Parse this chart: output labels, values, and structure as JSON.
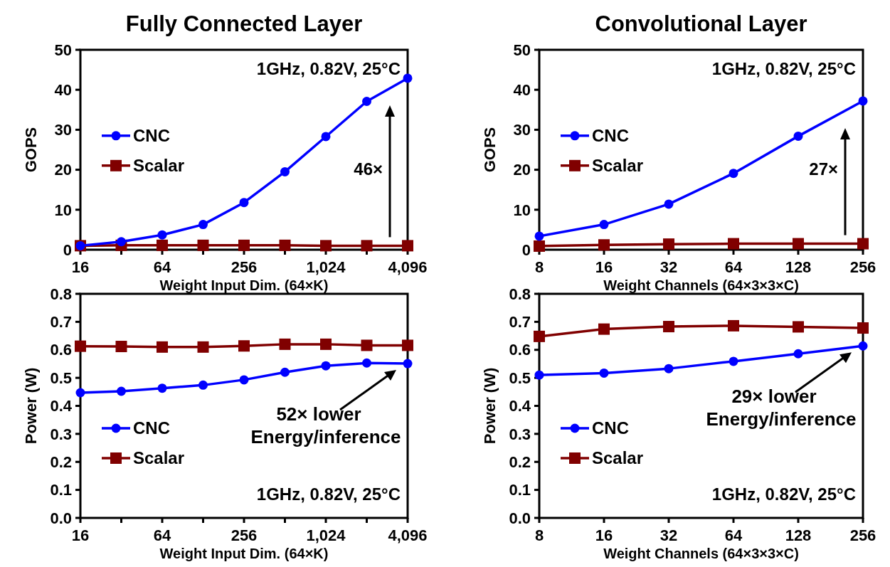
{
  "chart_data": [
    {
      "type": "line",
      "title": "Fully Connected Layer",
      "xlabel": "Weight Input Dim. (64×K)",
      "ylabel": "GOPS",
      "log": "x",
      "legend": "left",
      "grid": false,
      "x": [
        16,
        32,
        64,
        128,
        256,
        512,
        1024,
        2048,
        4096
      ],
      "xlim": [
        16,
        4096
      ],
      "xticks": [
        16,
        {
          "value": 32,
          "label": null
        },
        64,
        {
          "value": 128,
          "label": null
        },
        256,
        {
          "value": 512,
          "label": null
        },
        {
          "value": 1024,
          "label": "1,024"
        },
        {
          "value": 2048,
          "label": null
        },
        {
          "value": 4096,
          "label": "4,096"
        }
      ],
      "ylim": [
        0,
        50
      ],
      "yticks": [
        0,
        10,
        20,
        30,
        40,
        50
      ],
      "series": [
        {
          "name": "CNC",
          "color": "#0000ff",
          "marker": "circle",
          "values": [
            1.0,
            2.0,
            3.7,
            6.3,
            11.8,
            19.5,
            28.3,
            37.1,
            42.9
          ]
        },
        {
          "name": "Scalar",
          "color": "#800000",
          "marker": "square",
          "values": [
            1.0,
            1.1,
            1.1,
            1.1,
            1.1,
            1.1,
            1.0,
            1.0,
            1.0
          ]
        }
      ],
      "annotations": [
        "1GHz, 0.82V, 25°C",
        "46×"
      ]
    },
    {
      "type": "line",
      "title": "Convolutional Layer",
      "xlabel": "Weight Channels (64×3×3×C)",
      "ylabel": "GOPS",
      "log": "x",
      "legend": "left",
      "grid": false,
      "x": [
        8,
        16,
        32,
        64,
        128,
        256
      ],
      "xlim": [
        8,
        256
      ],
      "xticks": [
        8,
        16,
        32,
        64,
        128,
        256
      ],
      "ylim": [
        0,
        50
      ],
      "yticks": [
        0,
        10,
        20,
        30,
        40,
        50
      ],
      "series": [
        {
          "name": "CNC",
          "color": "#0000ff",
          "marker": "circle",
          "values": [
            3.4,
            6.3,
            11.4,
            19.1,
            28.4,
            37.2
          ]
        },
        {
          "name": "Scalar",
          "color": "#800000",
          "marker": "square",
          "values": [
            0.9,
            1.2,
            1.4,
            1.5,
            1.5,
            1.5
          ]
        }
      ],
      "annotations": [
        "1GHz, 0.82V, 25°C",
        "27×"
      ]
    },
    {
      "type": "line",
      "xlabel": "Weight Input Dim. (64×K)",
      "ylabel": "Power (W)",
      "log": "x",
      "legend": "bottom left",
      "grid": false,
      "x": [
        16,
        32,
        64,
        128,
        256,
        512,
        1024,
        2048,
        4096
      ],
      "xlim": [
        16,
        4096
      ],
      "xticks": [
        16,
        {
          "value": 32,
          "label": null
        },
        64,
        {
          "value": 128,
          "label": null
        },
        256,
        {
          "value": 512,
          "label": null
        },
        {
          "value": 1024,
          "label": "1,024"
        },
        {
          "value": 2048,
          "label": null
        },
        {
          "value": 4096,
          "label": "4,096"
        }
      ],
      "ylim": [
        0,
        0.8
      ],
      "yticks": [
        {
          "value": 0,
          "label": "0.0"
        },
        0.1,
        0.2,
        0.3,
        0.4,
        0.5,
        0.6,
        0.7,
        0.8
      ],
      "series": [
        {
          "name": "CNC",
          "color": "#0000ff",
          "marker": "circle",
          "values": [
            0.447,
            0.452,
            0.463,
            0.474,
            0.493,
            0.52,
            0.543,
            0.553,
            0.551
          ]
        },
        {
          "name": "Scalar",
          "color": "#800000",
          "marker": "square",
          "values": [
            0.613,
            0.612,
            0.61,
            0.61,
            0.614,
            0.62,
            0.62,
            0.616,
            0.616
          ]
        }
      ],
      "annotations": [
        "1GHz, 0.82V, 25°C",
        "52× lower\nEnergy/inference"
      ]
    },
    {
      "type": "line",
      "xlabel": "Weight Channels (64×3×3×C)",
      "ylabel": "Power (W)",
      "log": "x",
      "legend": "bottom left",
      "grid": false,
      "x": [
        8,
        16,
        32,
        64,
        128,
        256
      ],
      "xlim": [
        8,
        256
      ],
      "xticks": [
        8,
        16,
        32,
        64,
        128,
        256
      ],
      "ylim": [
        0,
        0.8
      ],
      "yticks": [
        {
          "value": 0,
          "label": "0.0"
        },
        0.1,
        0.2,
        0.3,
        0.4,
        0.5,
        0.6,
        0.7,
        0.8
      ],
      "series": [
        {
          "name": "CNC",
          "color": "#0000ff",
          "marker": "circle",
          "values": [
            0.51,
            0.517,
            0.533,
            0.559,
            0.586,
            0.614
          ]
        },
        {
          "name": "Scalar",
          "color": "#800000",
          "marker": "square",
          "values": [
            0.648,
            0.674,
            0.683,
            0.686,
            0.682,
            0.678
          ]
        }
      ],
      "annotations": [
        "1GHz, 0.82V, 25°C",
        "29× lower\nEnergy/inference"
      ]
    }
  ]
}
